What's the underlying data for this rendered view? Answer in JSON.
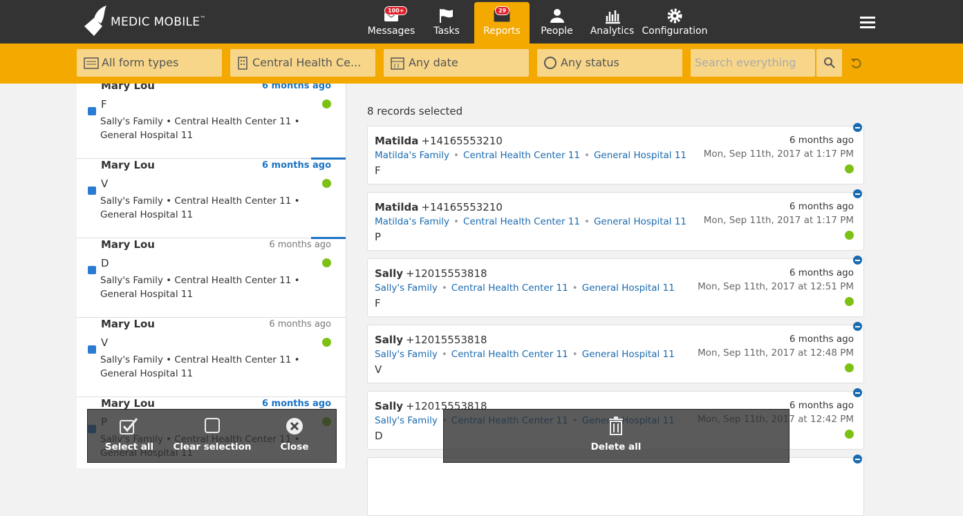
{
  "header": {
    "brand": "MEDIC MOBILE",
    "trademark": "™",
    "nav": [
      {
        "label": "Messages",
        "badge": "100+"
      },
      {
        "label": "Tasks"
      },
      {
        "label": "Reports",
        "badge": "29"
      },
      {
        "label": "People"
      },
      {
        "label": "Analytics"
      },
      {
        "label": "Configuration"
      }
    ]
  },
  "filters": {
    "form_types": "All form types",
    "place": "Central Health Ce...",
    "date": "Any date",
    "status": "Any status",
    "search_placeholder": "Search everything"
  },
  "list": [
    {
      "name": "Mary Lou",
      "time": "6 months ago",
      "highlight": true,
      "form": "F",
      "place": "Sally's Family • Central Health Center 11 • General Hospital 11"
    },
    {
      "name": "Mary Lou",
      "time": "6 months ago",
      "highlight": true,
      "form": "V",
      "place": "Sally's Family • Central Health Center 11 • General Hospital 11"
    },
    {
      "name": "Mary Lou",
      "time": "6 months ago",
      "highlight": false,
      "form": "D",
      "place": "Sally's Family • Central Health Center 11 • General Hospital 11"
    },
    {
      "name": "Mary Lou",
      "time": "6 months ago",
      "highlight": false,
      "form": "V",
      "place": "Sally's Family • Central Health Center 11 • General Hospital 11"
    },
    {
      "name": "Mary Lou",
      "time": "6 months ago",
      "highlight": true,
      "form": "P",
      "place": "Sally's Family • Central Health Center 11 • General Hospital 11"
    }
  ],
  "detail": {
    "selected_count": "8 records selected",
    "separator": "•",
    "records": [
      {
        "name": "Matilda",
        "phone": "+14165553210",
        "lineage": [
          "Matilda's Family",
          "Central Health Center 11",
          "General Hospital 11"
        ],
        "form": "F",
        "time": "6 months ago",
        "date": "Mon, Sep 11th, 2017 at 1:17 PM"
      },
      {
        "name": "Matilda",
        "phone": "+14165553210",
        "lineage": [
          "Matilda's Family",
          "Central Health Center 11",
          "General Hospital 11"
        ],
        "form": "P",
        "time": "6 months ago",
        "date": "Mon, Sep 11th, 2017 at 1:17 PM"
      },
      {
        "name": "Sally",
        "phone": "+12015553818",
        "lineage": [
          "Sally's Family",
          "Central Health Center 11",
          "General Hospital 11"
        ],
        "form": "F",
        "time": "6 months ago",
        "date": "Mon, Sep 11th, 2017 at 12:51 PM"
      },
      {
        "name": "Sally",
        "phone": "+12015553818",
        "lineage": [
          "Sally's Family",
          "Central Health Center 11",
          "General Hospital 11"
        ],
        "form": "V",
        "time": "6 months ago",
        "date": "Mon, Sep 11th, 2017 at 12:48 PM"
      },
      {
        "name": "Sally",
        "phone": "+12015553818",
        "lineage": [
          "Sally's Family",
          "Central Health Center 11",
          "General Hospital 11"
        ],
        "form": "D",
        "time": "6 months ago",
        "date": "Mon, Sep 11th, 2017 at 12:42 PM"
      }
    ]
  },
  "toolbar": {
    "select_all": "Select all",
    "clear_selection": "Clear selection",
    "close": "Close",
    "delete_all": "Delete all"
  }
}
